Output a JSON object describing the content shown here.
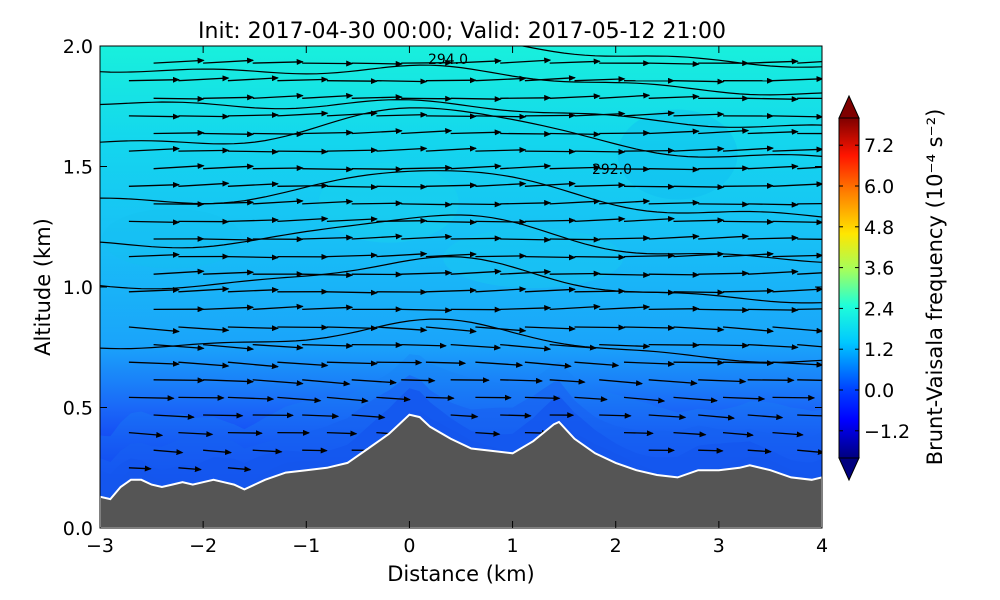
{
  "chart_data": {
    "type": "heatmap",
    "title": "Init: 2017-04-30 00:00; Valid: 2017-05-12 21:00",
    "xlabel": "Distance (km)",
    "ylabel": "Altitude (km)",
    "xlim": [
      -3,
      4
    ],
    "ylim": [
      0,
      2
    ],
    "x_ticks": [
      -3,
      -2,
      -1,
      0,
      1,
      2,
      3,
      4
    ],
    "x_tick_labels": [
      "−3",
      "−2",
      "−1",
      "0",
      "1",
      "2",
      "3",
      "4"
    ],
    "y_ticks": [
      0,
      0.5,
      1,
      1.5,
      2
    ],
    "y_tick_labels": [
      "0.0",
      "0.5",
      "1.0",
      "1.5",
      "2.0"
    ],
    "colorbar": {
      "label": "Brunt-Vaisala frequency (10⁻⁴ s⁻²)",
      "min": -2.0,
      "max": 8.0,
      "ticks": [
        -1.2,
        0.0,
        1.2,
        2.4,
        3.6,
        4.8,
        6.0,
        7.2
      ],
      "tick_labels": [
        "−1.2",
        "0.0",
        "1.2",
        "2.4",
        "3.6",
        "4.8",
        "6.0",
        "7.2"
      ],
      "colormap": "jet",
      "extend": "both"
    },
    "terrain": {
      "x": [
        -3.0,
        -2.9,
        -2.8,
        -2.7,
        -2.6,
        -2.5,
        -2.4,
        -2.3,
        -2.2,
        -2.1,
        -2.0,
        -1.9,
        -1.8,
        -1.7,
        -1.6,
        -1.4,
        -1.2,
        -1.0,
        -0.8,
        -0.6,
        -0.4,
        -0.2,
        -0.1,
        0.0,
        0.1,
        0.2,
        0.4,
        0.6,
        0.8,
        1.0,
        1.2,
        1.4,
        1.45,
        1.6,
        1.8,
        2.0,
        2.2,
        2.4,
        2.6,
        2.8,
        3.0,
        3.2,
        3.3,
        3.5,
        3.7,
        3.9,
        4.0
      ],
      "y": [
        0.13,
        0.12,
        0.17,
        0.2,
        0.2,
        0.18,
        0.17,
        0.18,
        0.19,
        0.18,
        0.19,
        0.2,
        0.19,
        0.18,
        0.16,
        0.2,
        0.23,
        0.24,
        0.25,
        0.27,
        0.33,
        0.39,
        0.43,
        0.47,
        0.46,
        0.42,
        0.37,
        0.33,
        0.32,
        0.31,
        0.36,
        0.43,
        0.44,
        0.37,
        0.31,
        0.27,
        0.24,
        0.22,
        0.21,
        0.24,
        0.24,
        0.25,
        0.26,
        0.24,
        0.21,
        0.2,
        0.21
      ],
      "fill": "#555555",
      "outline": "#ffffff"
    },
    "contours": {
      "labels": [
        "294.0",
        "292.0"
      ]
    },
    "vectors": {
      "description": "wind vectors"
    }
  }
}
